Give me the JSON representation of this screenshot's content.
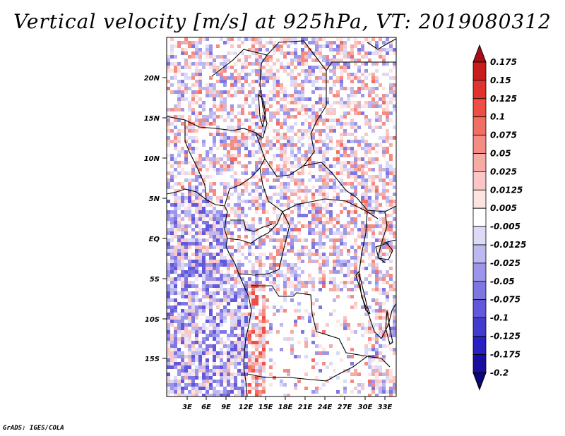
{
  "title": "Vertical velocity [m/s] at 925hPa, VT: 2019080312",
  "footer": "GrADS: IGES/COLA",
  "map": {
    "lat_labels": [
      "20N",
      "15N",
      "10N",
      "5N",
      "EQ",
      "5S",
      "10S",
      "15S"
    ],
    "lon_labels": [
      "3E",
      "6E",
      "9E",
      "12E",
      "15E",
      "18E",
      "21E",
      "24E",
      "27E",
      "30E",
      "33E"
    ]
  },
  "colorbar": {
    "levels": [
      "0.175",
      "0.15",
      "0.125",
      "0.1",
      "0.075",
      "0.05",
      "0.025",
      "0.0125",
      "0.005",
      "-0.005",
      "-0.0125",
      "-0.025",
      "-0.05",
      "-0.075",
      "-0.1",
      "-0.125",
      "-0.175",
      "-0.2"
    ],
    "colors": [
      "#a50f15",
      "#c81d1d",
      "#e03330",
      "#ef4d46",
      "#f26d64",
      "#f48c84",
      "#f7aba5",
      "#fac8c4",
      "#fde4e2",
      "#ffffff",
      "#dcdaf7",
      "#bcb8f0",
      "#9c96ea",
      "#7f76e2",
      "#6158db",
      "#433bcf",
      "#2a1fc0",
      "#1a0ea0",
      "#0d0578"
    ]
  },
  "colors": {
    "positive": "#e8655c",
    "negative": "#6b63e0",
    "border": "#000000"
  }
}
